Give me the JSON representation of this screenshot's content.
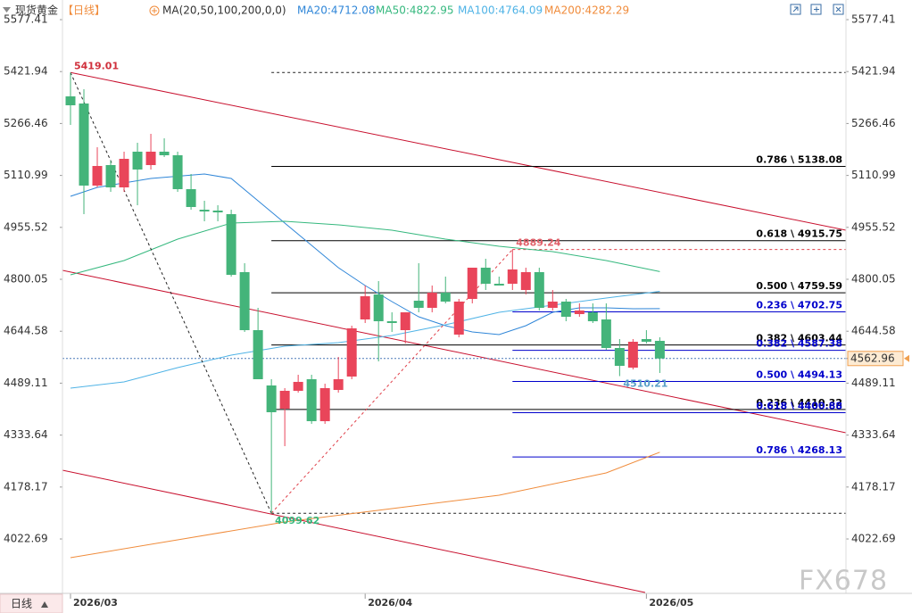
{
  "chart_data": {
    "type": "candlestick",
    "title": "现货黄金",
    "period": "【日线】",
    "indicator": "MA(20,50,100,200,0,0)",
    "period_button": "日线",
    "watermark": "FX678",
    "up_color": "#e9455a",
    "down_color": "#44b47a",
    "categories": [
      "2026/03",
      null,
      null,
      null,
      null,
      null,
      null,
      null,
      null,
      null,
      null,
      null,
      null,
      null,
      null,
      null,
      null,
      null,
      null,
      null,
      null,
      null,
      "2026/04",
      null,
      null,
      null,
      null,
      null,
      null,
      null,
      null,
      null,
      null,
      null,
      null,
      null,
      null,
      null,
      null,
      null,
      null,
      null,
      null,
      "2026/05",
      null
    ],
    "open": [
      5347.7,
      5326.3,
      5080.6,
      5142.0,
      5075.2,
      5182.1,
      5142.0,
      5182.1,
      5171.4,
      5069.9,
      5008.4,
      5005.8,
      4995.1,
      4821.5,
      4647.8,
      4482.2,
      4412.7,
      4466.2,
      4500.9,
      4375.3,
      4468.8,
      4508.9,
      4679.9,
      4754.7,
      4674.5,
      4647.8,
      4736.0,
      4714.6,
      4760.0,
      4634.5,
      4741.3,
      4834.8,
      4786.7,
      4786.7,
      4768.0,
      4821.5,
      4714.6,
      4733.3,
      4695.9,
      4701.2,
      4679.9,
      4594.4,
      4535.6,
      4621.1,
      4615.8
    ],
    "high": [
      5419.01,
      5369.1,
      5195.4,
      5155.4,
      5182.1,
      5208.8,
      5235.5,
      5222.1,
      5182.1,
      5115.3,
      5035.2,
      5021.8,
      5008.4,
      4848.2,
      4714.6,
      4500.9,
      4474.2,
      4514.3,
      4514.3,
      4487.5,
      4567.7,
      4661.2,
      4781.4,
      4794.7,
      4701.2,
      4701.2,
      4848.2,
      4781.4,
      4808.1,
      4741.3,
      4834.8,
      4861.5,
      4808.1,
      4889.24,
      4834.8,
      4834.8,
      4768.0,
      4741.3,
      4728.0,
      4728.0,
      4728.0,
      4621.1,
      4621.1,
      4647.8,
      4626.4
    ],
    "low": [
      5262.2,
      4995.1,
      5075.2,
      5061.9,
      5061.9,
      5021.8,
      5128.7,
      5166.1,
      5061.9,
      5008.4,
      4973.7,
      4973.7,
      4808.1,
      4642.5,
      4500.9,
      4099.62,
      4300.5,
      4460.8,
      4367.3,
      4367.3,
      4460.8,
      4500.9,
      4669.2,
      4554.3,
      4642.5,
      4607.7,
      4701.2,
      4701.2,
      4728.0,
      4626.4,
      4728.0,
      4768.0,
      4781.4,
      4768.0,
      4754.7,
      4706.6,
      4706.6,
      4674.5,
      4687.9,
      4669.2,
      4589.0,
      4510.21,
      4530.3,
      4607.7,
      4519.6
    ],
    "close": [
      5321.0,
      5080.6,
      5139.3,
      5075.2,
      5160.7,
      5128.7,
      5182.1,
      5171.4,
      5069.9,
      5016.5,
      5003.1,
      5000.4,
      4813.4,
      4647.8,
      4500.9,
      4402.1,
      4466.2,
      4492.9,
      4375.3,
      4474.2,
      4500.9,
      4653.2,
      4749.3,
      4674.5,
      4669.2,
      4701.2,
      4714.6,
      4760.0,
      4733.3,
      4733.3,
      4834.8,
      4786.7,
      4781.4,
      4829.5,
      4821.5,
      4714.6,
      4733.3,
      4687.9,
      4706.6,
      4674.5,
      4594.4,
      4541.0,
      4613.1,
      4613.1,
      4562.96
    ],
    "xlim": [
      -0.6,
      57.9
    ],
    "ylim": [
      3859.8,
      5636.2
    ],
    "yticks": [
      5577.41,
      5421.94,
      5266.46,
      5110.99,
      4955.52,
      4800.05,
      4644.58,
      4489.11,
      4333.64,
      4178.17,
      4022.69
    ],
    "series": [
      {
        "name": "MA20:4712.08",
        "color": "#2f86d8",
        "x": [
          0,
          2,
          6,
          10,
          12,
          14,
          16,
          18,
          20,
          22,
          24,
          26,
          28,
          30,
          32,
          34,
          36,
          38,
          40,
          42,
          44
        ],
        "values": [
          5048.5,
          5075.2,
          5101.9,
          5115.3,
          5101.9,
          5035.2,
          4968.4,
          4901.6,
          4834.8,
          4781.4,
          4733.3,
          4687.9,
          4661.2,
          4642.5,
          4634.5,
          4661.2,
          4701.2,
          4714.6,
          4714.6,
          4711.9,
          4712.08
        ]
      },
      {
        "name": "MA50:4822.95",
        "color": "#35b87e",
        "x": [
          0,
          4,
          8,
          12,
          16,
          20,
          24,
          28,
          32,
          36,
          40,
          44
        ],
        "values": [
          4813.4,
          4856.2,
          4920.3,
          4968.4,
          4973.7,
          4963.0,
          4947.0,
          4920.3,
          4898.9,
          4882.9,
          4856.2,
          4822.95
        ]
      },
      {
        "name": "MA100:4764.09",
        "color": "#4fb3e6",
        "x": [
          0,
          4,
          8,
          12,
          16,
          20,
          24,
          28,
          32,
          36,
          40,
          44
        ],
        "values": [
          4474.2,
          4492.9,
          4535.6,
          4573.0,
          4599.7,
          4610.4,
          4631.8,
          4663.9,
          4701.2,
          4722.6,
          4744.0,
          4764.09
        ]
      },
      {
        "name": "MA200:4282.29",
        "color": "#f08c3c",
        "x": [
          0,
          8,
          16,
          24,
          32,
          40,
          44
        ],
        "values": [
          3966.6,
          4020.1,
          4073.5,
          4113.5,
          4153.6,
          4220.4,
          4282.29
        ]
      }
    ],
    "trendlines": [
      {
        "color": "#c8102e",
        "x": [
          0,
          57.9
        ],
        "values": [
          5419.01,
          4946.9
        ]
      },
      {
        "color": "#c8102e",
        "x": [
          -0.6,
          57.9
        ],
        "values": [
          4826.8,
          4340.6
        ]
      },
      {
        "color": "#c8102e",
        "x": [
          -0.6,
          42.9
        ],
        "values": [
          4228.4,
          3862.4
        ]
      }
    ],
    "swing_lines": [
      {
        "color": "#222222",
        "x": [
          0,
          15
        ],
        "values": [
          5419.01,
          4099.62
        ]
      },
      {
        "color": "#e0404a",
        "x": [
          15,
          33
        ],
        "values": [
          4099.62,
          4889.24
        ]
      }
    ],
    "dashed_levels": [
      {
        "color": "#222222",
        "value": 5419.01,
        "x": [
          15,
          57.9
        ]
      },
      {
        "color": "#e0404a",
        "value": 4889.24,
        "x": [
          33,
          57.9
        ]
      },
      {
        "color": "#222222",
        "value": 4099.62,
        "x": [
          15,
          57.9
        ]
      }
    ],
    "fib_levels": [
      {
        "label": "0.786 \\ 5138.08",
        "value": 5138.08,
        "color": "#000000",
        "x": [
          15,
          57.9
        ]
      },
      {
        "label": "0.618 \\ 4915.75",
        "value": 4915.75,
        "color": "#000000",
        "x": [
          15,
          57.9
        ]
      },
      {
        "label": "0.500 \\ 4759.59",
        "value": 4759.59,
        "color": "#000000",
        "x": [
          15,
          57.9
        ]
      },
      {
        "label": "0.382 \\ 4603.44",
        "value": 4603.44,
        "color": "#000000",
        "x": [
          15,
          57.9
        ]
      },
      {
        "label": "0.236 \\ 4410.32",
        "value": 4410.32,
        "color": "#000000",
        "x": [
          15,
          57.9
        ]
      },
      {
        "label": "0.236 \\ 4702.75",
        "value": 4702.75,
        "color": "#0000cc",
        "x": [
          33,
          57.9
        ]
      },
      {
        "label": "0.382 \\ 4587.38",
        "value": 4587.38,
        "color": "#0000cc",
        "x": [
          33,
          57.9
        ]
      },
      {
        "label": "0.500 \\ 4494.13",
        "value": 4494.13,
        "color": "#0000cc",
        "x": [
          33,
          57.9
        ]
      },
      {
        "label": "0.618 \\ 4400.88",
        "value": 4400.88,
        "color": "#0000cc",
        "x": [
          33,
          57.9
        ]
      },
      {
        "label": "0.786 \\ 4268.13",
        "value": 4268.13,
        "color": "#0000cc",
        "x": [
          33,
          57.9
        ]
      }
    ],
    "point_labels": [
      {
        "value": 5419.01,
        "x": 0,
        "color": "#d0303c",
        "position": "above"
      },
      {
        "value": 4099.62,
        "x": 15,
        "color": "#35b87e",
        "position": "below"
      },
      {
        "value": 4889.24,
        "x": 33,
        "color": "#e0606a",
        "position": "above"
      },
      {
        "value": 4510.21,
        "x": 41,
        "color": "#5aa0c8",
        "position": "below"
      }
    ],
    "current_price": {
      "value": 4562.96,
      "color": "#4a78b8"
    }
  }
}
